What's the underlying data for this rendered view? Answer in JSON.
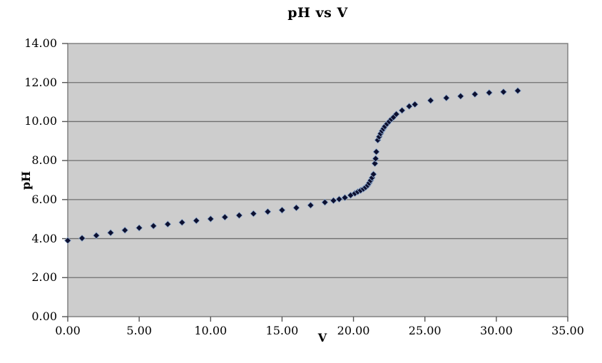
{
  "chart": {
    "title": "pH vs V",
    "xlabel": "V",
    "ylabel": "pH"
  },
  "chart_data": {
    "type": "scatter",
    "title": "pH vs V",
    "xlabel": "V",
    "ylabel": "pH",
    "xlim": [
      0,
      35
    ],
    "ylim": [
      0,
      14
    ],
    "x_ticks": [
      0,
      5,
      10,
      15,
      20,
      25,
      30,
      35
    ],
    "x_tick_labels": [
      "0.00",
      "5.00",
      "10.00",
      "15.00",
      "20.00",
      "25.00",
      "30.00",
      "35.00"
    ],
    "y_ticks": [
      0,
      2,
      4,
      6,
      8,
      10,
      12,
      14
    ],
    "y_tick_labels": [
      "0.00",
      "2.00",
      "4.00",
      "6.00",
      "8.00",
      "10.00",
      "12.00",
      "14.00"
    ],
    "grid": "horizontal",
    "legend": "none",
    "colors": {
      "plot_background": "#cdcdcd",
      "gridline": "#6f6f6f",
      "plot_border": "#7a7a7a",
      "tick": "#555555",
      "marker_fill": "#0d1030",
      "marker_outline": "#93aed1",
      "text": "#000000"
    },
    "marker": {
      "shape": "diamond",
      "size": 9
    },
    "series": [
      {
        "name": "pH vs V",
        "points": [
          [
            0.0,
            3.9
          ],
          [
            1.0,
            4.02
          ],
          [
            2.0,
            4.16
          ],
          [
            3.0,
            4.3
          ],
          [
            4.0,
            4.43
          ],
          [
            5.0,
            4.55
          ],
          [
            6.0,
            4.65
          ],
          [
            7.0,
            4.74
          ],
          [
            8.0,
            4.83
          ],
          [
            9.0,
            4.92
          ],
          [
            10.0,
            5.01
          ],
          [
            11.0,
            5.1
          ],
          [
            12.0,
            5.19
          ],
          [
            13.0,
            5.28
          ],
          [
            14.0,
            5.38
          ],
          [
            15.0,
            5.46
          ],
          [
            16.0,
            5.58
          ],
          [
            17.0,
            5.71
          ],
          [
            18.0,
            5.86
          ],
          [
            18.6,
            5.95
          ],
          [
            19.0,
            6.02
          ],
          [
            19.4,
            6.1
          ],
          [
            19.8,
            6.22
          ],
          [
            20.1,
            6.32
          ],
          [
            20.3,
            6.4
          ],
          [
            20.5,
            6.47
          ],
          [
            20.7,
            6.55
          ],
          [
            20.85,
            6.63
          ],
          [
            21.0,
            6.73
          ],
          [
            21.1,
            6.85
          ],
          [
            21.2,
            6.98
          ],
          [
            21.3,
            7.12
          ],
          [
            21.4,
            7.3
          ],
          [
            21.5,
            7.85
          ],
          [
            21.55,
            8.1
          ],
          [
            21.6,
            8.45
          ],
          [
            21.7,
            9.05
          ],
          [
            21.8,
            9.22
          ],
          [
            21.9,
            9.38
          ],
          [
            22.0,
            9.52
          ],
          [
            22.1,
            9.63
          ],
          [
            22.2,
            9.75
          ],
          [
            22.35,
            9.88
          ],
          [
            22.5,
            10.0
          ],
          [
            22.65,
            10.12
          ],
          [
            22.8,
            10.22
          ],
          [
            23.0,
            10.38
          ],
          [
            23.4,
            10.57
          ],
          [
            23.9,
            10.78
          ],
          [
            24.3,
            10.88
          ],
          [
            25.4,
            11.08
          ],
          [
            26.5,
            11.21
          ],
          [
            27.5,
            11.3
          ],
          [
            28.5,
            11.4
          ],
          [
            29.5,
            11.48
          ],
          [
            30.5,
            11.52
          ],
          [
            31.5,
            11.58
          ]
        ]
      }
    ]
  },
  "layout_labels": {
    "note": ""
  }
}
